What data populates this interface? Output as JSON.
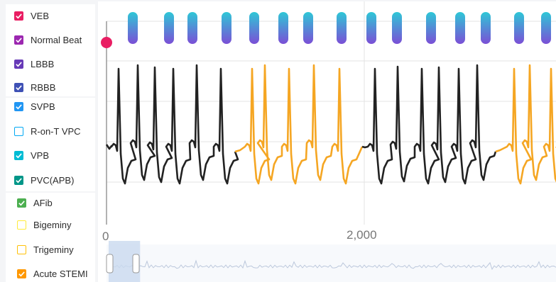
{
  "legend": {
    "items": [
      {
        "label": "VEB",
        "color": "#e91e63",
        "checked": true
      },
      {
        "label": "Normal Beat",
        "color": "#9c27b0",
        "checked": true
      },
      {
        "label": "LBBB",
        "color": "#673ab7",
        "checked": true
      },
      {
        "label": "RBBB",
        "color": "#3f51b5",
        "checked": true
      },
      {
        "label": "SVPB",
        "color": "#2196f3",
        "checked": true
      },
      {
        "label": "R-on-T VPC",
        "color": "#03a9f4",
        "checked": false
      },
      {
        "label": "VPB",
        "color": "#00bcd4",
        "checked": true
      },
      {
        "label": "PVC(APB)",
        "color": "#009688",
        "checked": true
      },
      {
        "label": "AFib",
        "color": "#4caf50",
        "checked": true
      },
      {
        "label": "Bigeminy",
        "color": "#ffeb3b",
        "checked": false
      },
      {
        "label": "Trigeminy",
        "color": "#ffc107",
        "checked": false
      },
      {
        "label": "Acute STEMI",
        "color": "#ff9800",
        "checked": true
      }
    ]
  },
  "chart_data": {
    "type": "line",
    "x_axis": {
      "ticks": [
        "0",
        "2,000"
      ]
    },
    "series": [
      {
        "color": "#222222"
      },
      {
        "color": "#f5a623"
      }
    ],
    "beat_markers": {
      "colors_top": "#2ec7d6",
      "colors_bottom": "#7b4fd6",
      "count": 18
    },
    "event_marker_color": "#e91e63",
    "navigator": {
      "selection": [
        0,
        0.07
      ]
    }
  }
}
